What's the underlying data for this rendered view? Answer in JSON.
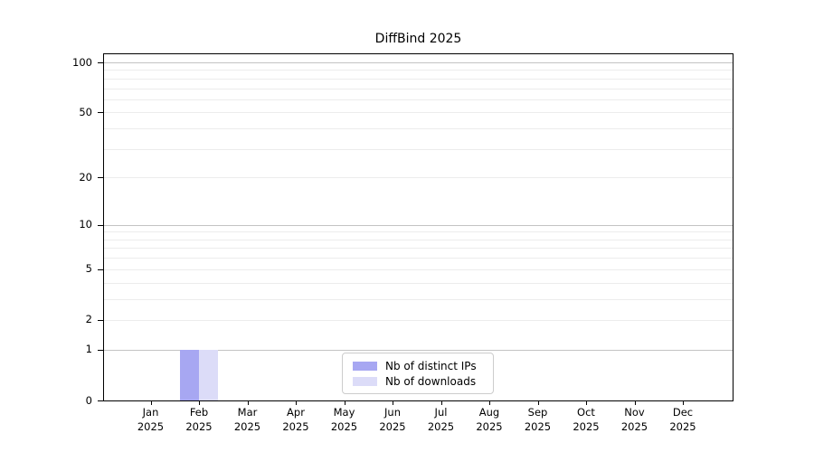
{
  "chart_data": {
    "type": "bar",
    "title": "DiffBind 2025",
    "year_label": "2025",
    "categories": [
      "Jan",
      "Feb",
      "Mar",
      "Apr",
      "May",
      "Jun",
      "Jul",
      "Aug",
      "Sep",
      "Oct",
      "Nov",
      "Dec"
    ],
    "series": [
      {
        "name": "Nb of distinct IPs",
        "color": "#a7a7f2",
        "values": [
          0,
          1,
          0,
          0,
          0,
          0,
          0,
          0,
          0,
          0,
          0,
          0
        ]
      },
      {
        "name": "Nb of downloads",
        "color": "#dcdcf8",
        "values": [
          0,
          1,
          0,
          0,
          0,
          0,
          0,
          0,
          0,
          0,
          0,
          0
        ]
      }
    ],
    "y_ticks": [
      0,
      1,
      2,
      5,
      10,
      20,
      50,
      100
    ],
    "y_major_gridlines": [
      1,
      10,
      100
    ],
    "y_minor_gridlines": [
      2,
      3,
      4,
      5,
      6,
      7,
      8,
      9,
      20,
      30,
      40,
      50,
      60,
      70,
      80,
      90
    ],
    "y_scale": "log1p",
    "ylim": [
      0,
      115
    ],
    "xlabel": "",
    "ylabel": "",
    "grid": "horizontal-only",
    "legend_position": "inside-bottom-center"
  },
  "colors": {
    "background": "#ffffff",
    "spine": "#000000",
    "major_grid": "#c3c3c3",
    "minor_grid": "#ececec",
    "legend_border": "#cccccc",
    "text": "#000000"
  }
}
